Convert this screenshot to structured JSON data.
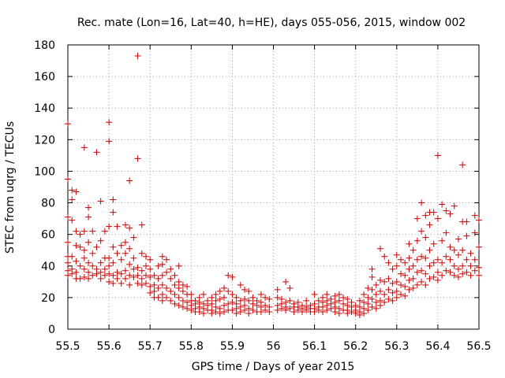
{
  "chart_data": {
    "type": "scatter",
    "title": "Rec. mate (Lon=16, Lat=40, h=HE), days 055-056, 2015, window 002",
    "xlabel": "GPS time / Days of year 2015",
    "ylabel": "STEC from uqrg / TECUs",
    "xlim": [
      55.5,
      56.5
    ],
    "ylim": [
      0,
      180
    ],
    "xticks": [
      55.5,
      55.6,
      55.7,
      55.8,
      55.9,
      56,
      56.1,
      56.2,
      56.3,
      56.4,
      56.5
    ],
    "xtick_labels": [
      "55.5",
      "55.6",
      "55.7",
      "55.8",
      "55.9",
      "56",
      "56.1",
      "56.2",
      "56.3",
      "56.4",
      "56.5"
    ],
    "yticks": [
      0,
      20,
      40,
      60,
      80,
      100,
      120,
      140,
      160,
      180
    ],
    "ytick_labels": [
      "0",
      "20",
      "40",
      "60",
      "80",
      "100",
      "120",
      "140",
      "160",
      "180"
    ],
    "grid": true,
    "marker": "+",
    "color": "#cc0000",
    "points": [
      [
        55.5,
        130
      ],
      [
        55.5,
        95
      ],
      [
        55.5,
        71
      ],
      [
        55.5,
        55
      ],
      [
        55.5,
        46
      ],
      [
        55.5,
        42
      ],
      [
        55.5,
        37
      ],
      [
        55.5,
        34
      ],
      [
        55.51,
        88
      ],
      [
        55.51,
        82
      ],
      [
        55.51,
        69
      ],
      [
        55.51,
        46
      ],
      [
        55.51,
        38
      ],
      [
        55.51,
        35
      ],
      [
        55.52,
        87
      ],
      [
        55.52,
        62
      ],
      [
        55.52,
        53
      ],
      [
        55.52,
        43
      ],
      [
        55.52,
        36
      ],
      [
        55.52,
        32
      ],
      [
        55.53,
        60
      ],
      [
        55.53,
        52
      ],
      [
        55.53,
        40
      ],
      [
        55.53,
        32
      ],
      [
        55.54,
        115
      ],
      [
        55.54,
        62
      ],
      [
        55.54,
        50
      ],
      [
        55.54,
        45
      ],
      [
        55.54,
        38
      ],
      [
        55.54,
        33
      ],
      [
        55.55,
        77
      ],
      [
        55.55,
        71
      ],
      [
        55.55,
        55
      ],
      [
        55.55,
        42
      ],
      [
        55.55,
        36
      ],
      [
        55.55,
        32
      ],
      [
        55.56,
        62
      ],
      [
        55.56,
        48
      ],
      [
        55.56,
        40
      ],
      [
        55.56,
        34
      ],
      [
        55.57,
        112
      ],
      [
        55.57,
        52
      ],
      [
        55.57,
        38
      ],
      [
        55.57,
        35
      ],
      [
        55.58,
        81
      ],
      [
        55.58,
        56
      ],
      [
        55.58,
        42
      ],
      [
        55.58,
        36
      ],
      [
        55.58,
        32
      ],
      [
        55.59,
        62
      ],
      [
        55.59,
        45
      ],
      [
        55.59,
        38
      ],
      [
        55.59,
        34
      ],
      [
        55.6,
        131
      ],
      [
        55.6,
        119
      ],
      [
        55.6,
        65
      ],
      [
        55.6,
        45
      ],
      [
        55.6,
        40
      ],
      [
        55.6,
        35
      ],
      [
        55.6,
        30
      ],
      [
        55.61,
        82
      ],
      [
        55.61,
        74
      ],
      [
        55.61,
        52
      ],
      [
        55.61,
        42
      ],
      [
        55.61,
        34
      ],
      [
        55.61,
        29
      ],
      [
        55.62,
        65
      ],
      [
        55.62,
        48
      ],
      [
        55.62,
        36
      ],
      [
        55.62,
        32
      ],
      [
        55.63,
        53
      ],
      [
        55.63,
        44
      ],
      [
        55.63,
        35
      ],
      [
        55.63,
        29
      ],
      [
        55.64,
        66
      ],
      [
        55.64,
        55
      ],
      [
        55.64,
        48
      ],
      [
        55.64,
        37
      ],
      [
        55.64,
        32
      ],
      [
        55.65,
        94
      ],
      [
        55.65,
        64
      ],
      [
        55.65,
        51
      ],
      [
        55.65,
        41
      ],
      [
        55.65,
        34
      ],
      [
        55.65,
        28
      ],
      [
        55.66,
        58
      ],
      [
        55.66,
        45
      ],
      [
        55.66,
        38
      ],
      [
        55.66,
        33
      ],
      [
        55.67,
        173
      ],
      [
        55.67,
        108
      ],
      [
        55.67,
        39
      ],
      [
        55.67,
        34
      ],
      [
        55.67,
        29
      ],
      [
        55.68,
        66
      ],
      [
        55.68,
        48
      ],
      [
        55.68,
        37
      ],
      [
        55.68,
        32
      ],
      [
        55.68,
        28
      ],
      [
        55.69,
        46
      ],
      [
        55.69,
        40
      ],
      [
        55.69,
        34
      ],
      [
        55.69,
        29
      ],
      [
        55.7,
        44
      ],
      [
        55.7,
        38
      ],
      [
        55.7,
        33
      ],
      [
        55.7,
        27
      ],
      [
        55.7,
        23
      ],
      [
        55.71,
        34
      ],
      [
        55.71,
        28
      ],
      [
        55.71,
        24
      ],
      [
        55.71,
        20
      ],
      [
        55.72,
        40
      ],
      [
        55.72,
        32
      ],
      [
        55.72,
        26
      ],
      [
        55.72,
        20
      ],
      [
        55.73,
        46
      ],
      [
        55.73,
        41
      ],
      [
        55.73,
        34
      ],
      [
        55.73,
        28
      ],
      [
        55.73,
        22
      ],
      [
        55.73,
        18
      ],
      [
        55.74,
        44
      ],
      [
        55.74,
        36
      ],
      [
        55.74,
        26
      ],
      [
        55.74,
        20
      ],
      [
        55.75,
        38
      ],
      [
        55.75,
        32
      ],
      [
        55.75,
        24
      ],
      [
        55.75,
        18
      ],
      [
        55.76,
        34
      ],
      [
        55.76,
        28
      ],
      [
        55.76,
        22
      ],
      [
        55.76,
        16
      ],
      [
        55.77,
        40
      ],
      [
        55.77,
        30
      ],
      [
        55.77,
        26
      ],
      [
        55.77,
        20
      ],
      [
        55.77,
        15
      ],
      [
        55.78,
        28
      ],
      [
        55.78,
        24
      ],
      [
        55.78,
        18
      ],
      [
        55.78,
        14
      ],
      [
        55.79,
        27
      ],
      [
        55.79,
        22
      ],
      [
        55.79,
        17
      ],
      [
        55.79,
        13
      ],
      [
        55.8,
        22
      ],
      [
        55.8,
        18
      ],
      [
        55.8,
        15
      ],
      [
        55.8,
        12
      ],
      [
        55.81,
        18
      ],
      [
        55.81,
        16
      ],
      [
        55.81,
        13
      ],
      [
        55.81,
        11
      ],
      [
        55.82,
        20
      ],
      [
        55.82,
        17
      ],
      [
        55.82,
        14
      ],
      [
        55.82,
        11
      ],
      [
        55.83,
        22
      ],
      [
        55.83,
        16
      ],
      [
        55.83,
        13
      ],
      [
        55.83,
        10
      ],
      [
        55.84,
        18
      ],
      [
        55.84,
        15
      ],
      [
        55.84,
        12
      ],
      [
        55.85,
        20
      ],
      [
        55.85,
        16
      ],
      [
        55.85,
        12
      ],
      [
        55.85,
        10
      ],
      [
        55.86,
        22
      ],
      [
        55.86,
        18
      ],
      [
        55.86,
        14
      ],
      [
        55.86,
        11
      ],
      [
        55.87,
        24
      ],
      [
        55.87,
        19
      ],
      [
        55.87,
        13
      ],
      [
        55.87,
        10
      ],
      [
        55.88,
        26
      ],
      [
        55.88,
        20
      ],
      [
        55.88,
        15
      ],
      [
        55.88,
        11
      ],
      [
        55.89,
        34
      ],
      [
        55.89,
        24
      ],
      [
        55.89,
        16
      ],
      [
        55.89,
        12
      ],
      [
        55.9,
        33
      ],
      [
        55.9,
        22
      ],
      [
        55.9,
        17
      ],
      [
        55.9,
        12
      ],
      [
        55.91,
        20
      ],
      [
        55.91,
        16
      ],
      [
        55.91,
        13
      ],
      [
        55.91,
        10
      ],
      [
        55.92,
        28
      ],
      [
        55.92,
        18
      ],
      [
        55.92,
        14
      ],
      [
        55.92,
        11
      ],
      [
        55.93,
        25
      ],
      [
        55.93,
        19
      ],
      [
        55.93,
        15
      ],
      [
        55.93,
        12
      ],
      [
        55.94,
        24
      ],
      [
        55.94,
        18
      ],
      [
        55.94,
        13
      ],
      [
        55.94,
        10
      ],
      [
        55.95,
        20
      ],
      [
        55.95,
        16
      ],
      [
        55.95,
        12
      ],
      [
        55.96,
        18
      ],
      [
        55.96,
        15
      ],
      [
        55.96,
        11
      ],
      [
        55.97,
        22
      ],
      [
        55.97,
        17
      ],
      [
        55.97,
        14
      ],
      [
        55.97,
        11
      ],
      [
        55.98,
        20
      ],
      [
        55.98,
        15
      ],
      [
        55.98,
        12
      ],
      [
        55.99,
        19
      ],
      [
        55.99,
        14
      ],
      [
        55.99,
        11
      ],
      [
        56.01,
        25
      ],
      [
        56.01,
        20
      ],
      [
        56.01,
        15
      ],
      [
        56.01,
        12
      ],
      [
        56.02,
        19
      ],
      [
        56.02,
        16
      ],
      [
        56.02,
        13
      ],
      [
        56.03,
        30
      ],
      [
        56.03,
        17
      ],
      [
        56.03,
        14
      ],
      [
        56.03,
        12
      ],
      [
        56.04,
        26
      ],
      [
        56.04,
        18
      ],
      [
        56.04,
        13
      ],
      [
        56.05,
        16
      ],
      [
        56.05,
        14
      ],
      [
        56.05,
        11
      ],
      [
        56.06,
        17
      ],
      [
        56.06,
        14
      ],
      [
        56.06,
        12
      ],
      [
        56.07,
        15
      ],
      [
        56.07,
        13
      ],
      [
        56.07,
        11
      ],
      [
        56.08,
        18
      ],
      [
        56.08,
        14
      ],
      [
        56.08,
        12
      ],
      [
        56.09,
        15
      ],
      [
        56.09,
        13
      ],
      [
        56.09,
        11
      ],
      [
        56.1,
        22
      ],
      [
        56.1,
        16
      ],
      [
        56.1,
        13
      ],
      [
        56.1,
        11
      ],
      [
        56.11,
        18
      ],
      [
        56.11,
        14
      ],
      [
        56.11,
        12
      ],
      [
        56.12,
        20
      ],
      [
        56.12,
        17
      ],
      [
        56.12,
        14
      ],
      [
        56.12,
        11
      ],
      [
        56.13,
        22
      ],
      [
        56.13,
        18
      ],
      [
        56.13,
        15
      ],
      [
        56.13,
        12
      ],
      [
        56.14,
        19
      ],
      [
        56.14,
        16
      ],
      [
        56.14,
        13
      ],
      [
        56.15,
        21
      ],
      [
        56.15,
        17
      ],
      [
        56.15,
        14
      ],
      [
        56.15,
        11
      ],
      [
        56.16,
        22
      ],
      [
        56.16,
        18
      ],
      [
        56.16,
        13
      ],
      [
        56.16,
        10
      ],
      [
        56.17,
        20
      ],
      [
        56.17,
        16
      ],
      [
        56.17,
        12
      ],
      [
        56.18,
        19
      ],
      [
        56.18,
        15
      ],
      [
        56.18,
        12
      ],
      [
        56.18,
        10
      ],
      [
        56.19,
        17
      ],
      [
        56.19,
        14
      ],
      [
        56.19,
        11
      ],
      [
        56.2,
        15
      ],
      [
        56.2,
        12
      ],
      [
        56.2,
        10
      ],
      [
        56.21,
        18
      ],
      [
        56.21,
        14
      ],
      [
        56.21,
        11
      ],
      [
        56.21,
        9
      ],
      [
        56.22,
        22
      ],
      [
        56.22,
        17
      ],
      [
        56.22,
        13
      ],
      [
        56.22,
        10
      ],
      [
        56.23,
        26
      ],
      [
        56.23,
        20
      ],
      [
        56.23,
        16
      ],
      [
        56.23,
        12
      ],
      [
        56.24,
        38
      ],
      [
        56.24,
        33
      ],
      [
        56.24,
        25
      ],
      [
        56.24,
        19
      ],
      [
        56.24,
        14
      ],
      [
        56.25,
        28
      ],
      [
        56.25,
        22
      ],
      [
        56.25,
        17
      ],
      [
        56.25,
        13
      ],
      [
        56.26,
        51
      ],
      [
        56.26,
        31
      ],
      [
        56.26,
        24
      ],
      [
        56.26,
        18
      ],
      [
        56.26,
        15
      ],
      [
        56.27,
        46
      ],
      [
        56.27,
        30
      ],
      [
        56.27,
        22
      ],
      [
        56.27,
        17
      ],
      [
        56.28,
        42
      ],
      [
        56.28,
        32
      ],
      [
        56.28,
        25
      ],
      [
        56.28,
        19
      ],
      [
        56.29,
        38
      ],
      [
        56.29,
        29
      ],
      [
        56.29,
        23
      ],
      [
        56.29,
        18
      ],
      [
        56.3,
        47
      ],
      [
        56.3,
        40
      ],
      [
        56.3,
        30
      ],
      [
        56.3,
        24
      ],
      [
        56.3,
        20
      ],
      [
        56.31,
        44
      ],
      [
        56.31,
        35
      ],
      [
        56.31,
        28
      ],
      [
        56.31,
        22
      ],
      [
        56.32,
        42
      ],
      [
        56.32,
        34
      ],
      [
        56.32,
        27
      ],
      [
        56.32,
        21
      ],
      [
        56.33,
        54
      ],
      [
        56.33,
        45
      ],
      [
        56.33,
        38
      ],
      [
        56.33,
        31
      ],
      [
        56.33,
        25
      ],
      [
        56.34,
        50
      ],
      [
        56.34,
        40
      ],
      [
        56.34,
        32
      ],
      [
        56.34,
        26
      ],
      [
        56.35,
        70
      ],
      [
        56.35,
        56
      ],
      [
        56.35,
        44
      ],
      [
        56.35,
        36
      ],
      [
        56.35,
        28
      ],
      [
        56.36,
        80
      ],
      [
        56.36,
        62
      ],
      [
        56.36,
        46
      ],
      [
        56.36,
        37
      ],
      [
        56.36,
        30
      ],
      [
        56.37,
        72
      ],
      [
        56.37,
        58
      ],
      [
        56.37,
        45
      ],
      [
        56.37,
        35
      ],
      [
        56.37,
        28
      ],
      [
        56.38,
        74
      ],
      [
        56.38,
        66
      ],
      [
        56.38,
        50
      ],
      [
        56.38,
        40
      ],
      [
        56.38,
        32
      ],
      [
        56.39,
        74
      ],
      [
        56.39,
        54
      ],
      [
        56.39,
        42
      ],
      [
        56.39,
        33
      ],
      [
        56.4,
        110
      ],
      [
        56.4,
        70
      ],
      [
        56.4,
        44
      ],
      [
        56.4,
        36
      ],
      [
        56.4,
        31
      ],
      [
        56.41,
        79
      ],
      [
        56.41,
        56
      ],
      [
        56.41,
        42
      ],
      [
        56.41,
        34
      ],
      [
        56.42,
        75
      ],
      [
        56.42,
        61
      ],
      [
        56.42,
        46
      ],
      [
        56.42,
        37
      ],
      [
        56.43,
        73
      ],
      [
        56.43,
        52
      ],
      [
        56.43,
        44
      ],
      [
        56.43,
        36
      ],
      [
        56.44,
        78
      ],
      [
        56.44,
        50
      ],
      [
        56.44,
        40
      ],
      [
        56.44,
        34
      ],
      [
        56.45,
        57
      ],
      [
        56.45,
        47
      ],
      [
        56.45,
        38
      ],
      [
        56.45,
        33
      ],
      [
        56.46,
        104
      ],
      [
        56.46,
        68
      ],
      [
        56.46,
        50
      ],
      [
        56.46,
        40
      ],
      [
        56.46,
        35
      ],
      [
        56.47,
        68
      ],
      [
        56.47,
        59
      ],
      [
        56.47,
        44
      ],
      [
        56.47,
        36
      ],
      [
        56.48,
        48
      ],
      [
        56.48,
        40
      ],
      [
        56.48,
        34
      ],
      [
        56.49,
        72
      ],
      [
        56.49,
        61
      ],
      [
        56.49,
        44
      ],
      [
        56.49,
        37
      ],
      [
        56.5,
        69
      ],
      [
        56.5,
        52
      ],
      [
        56.5,
        39
      ],
      [
        56.5,
        34
      ]
    ]
  }
}
